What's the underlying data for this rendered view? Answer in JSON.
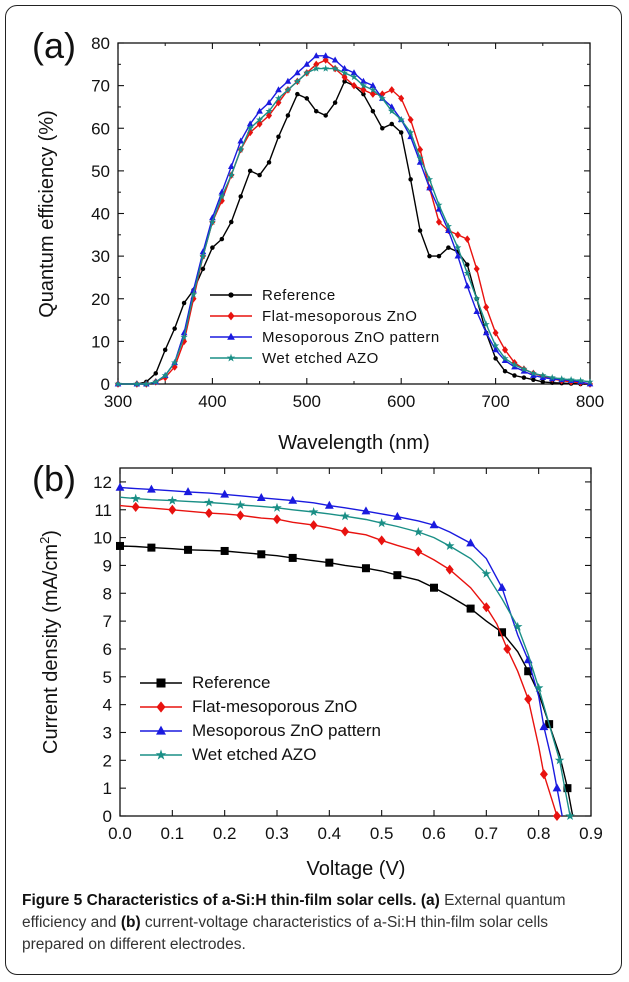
{
  "figure": {
    "caption_label": "Figure 5 Characteristics of a-Si:H thin-film solar cells.",
    "caption_a_marker": "(a)",
    "caption_text_1": " External quantum efficiency and ",
    "caption_b_marker": "(b)",
    "caption_text_2": " current-voltage characteristics of a-Si:H thin-film solar cells prepared on different electrodes."
  },
  "chart_data": [
    {
      "panel": "(a)",
      "type": "line",
      "xlabel": "Wavelength (nm)",
      "ylabel": "Quantum efficiency (%)",
      "xlim": [
        300,
        800
      ],
      "ylim": [
        0,
        80
      ],
      "xticks": [
        300,
        400,
        500,
        600,
        700,
        800
      ],
      "yticks": [
        0,
        10,
        20,
        30,
        40,
        50,
        60,
        70,
        80
      ],
      "legend_position": "bottom-center",
      "series": [
        {
          "name": "Reference",
          "color": "#000000",
          "marker": "circle",
          "x": [
            300,
            320,
            330,
            340,
            350,
            360,
            370,
            380,
            390,
            400,
            410,
            420,
            430,
            440,
            450,
            460,
            470,
            480,
            490,
            500,
            510,
            520,
            530,
            540,
            550,
            560,
            570,
            580,
            590,
            600,
            610,
            620,
            630,
            640,
            650,
            660,
            670,
            680,
            690,
            700,
            710,
            720,
            730,
            740,
            750,
            760,
            770,
            780,
            790,
            800
          ],
          "y": [
            0,
            0,
            0.5,
            2.5,
            8,
            13,
            19,
            22,
            27,
            32,
            34,
            38,
            44,
            50,
            49,
            52,
            58,
            63,
            68,
            67,
            64,
            63,
            66,
            71,
            70,
            68,
            64,
            60,
            61,
            59,
            48,
            36,
            30,
            30,
            32,
            31,
            28,
            20,
            12,
            6,
            3,
            2,
            1.5,
            1,
            0.5,
            0.3,
            0.2,
            0.1,
            0,
            0
          ]
        },
        {
          "name": "Flat-mesoporous ZnO",
          "color": "#e8120f",
          "marker": "diamond",
          "x": [
            300,
            320,
            330,
            340,
            350,
            360,
            370,
            380,
            390,
            400,
            410,
            420,
            430,
            440,
            450,
            460,
            470,
            480,
            490,
            500,
            510,
            520,
            530,
            540,
            550,
            560,
            570,
            580,
            590,
            600,
            610,
            620,
            630,
            640,
            650,
            660,
            670,
            680,
            690,
            700,
            710,
            720,
            730,
            740,
            750,
            760,
            770,
            780,
            790,
            800
          ],
          "y": [
            0,
            0,
            0,
            0.5,
            1.5,
            4,
            10,
            20,
            30,
            38,
            43,
            49,
            55,
            59,
            61,
            63,
            66,
            69,
            71,
            73,
            75,
            76,
            74,
            72,
            70,
            69,
            68,
            68,
            69,
            67,
            62,
            55,
            46,
            38,
            36,
            35,
            34,
            27,
            18,
            12,
            8,
            5,
            3.5,
            2.5,
            1.8,
            1.2,
            0.8,
            0.5,
            0.3,
            0
          ]
        },
        {
          "name": "Mesoporous ZnO pattern",
          "color": "#1a1adf",
          "marker": "triangle",
          "x": [
            300,
            320,
            330,
            340,
            350,
            360,
            370,
            380,
            390,
            400,
            410,
            420,
            430,
            440,
            450,
            460,
            470,
            480,
            490,
            500,
            510,
            520,
            530,
            540,
            550,
            560,
            570,
            580,
            590,
            600,
            610,
            620,
            630,
            640,
            650,
            660,
            670,
            680,
            690,
            700,
            710,
            720,
            730,
            740,
            750,
            760,
            770,
            780,
            790,
            800
          ],
          "y": [
            0,
            0,
            0,
            0.5,
            2,
            5,
            12,
            22,
            31,
            39,
            45,
            51,
            57,
            61,
            64,
            66,
            69,
            71,
            73,
            75,
            77,
            77,
            76,
            74,
            73,
            71,
            70,
            67,
            65,
            62,
            58,
            52,
            46,
            41,
            36,
            30,
            23,
            17,
            12,
            8,
            5.5,
            4,
            3,
            2,
            1.5,
            1.2,
            1,
            0.8,
            0.5,
            0
          ]
        },
        {
          "name": "Wet etched AZO",
          "color": "#1a8f86",
          "marker": "star",
          "x": [
            300,
            320,
            330,
            340,
            350,
            360,
            370,
            380,
            390,
            400,
            410,
            420,
            430,
            440,
            450,
            460,
            470,
            480,
            490,
            500,
            510,
            520,
            530,
            540,
            550,
            560,
            570,
            580,
            590,
            600,
            610,
            620,
            630,
            640,
            650,
            660,
            670,
            680,
            690,
            700,
            710,
            720,
            730,
            740,
            750,
            760,
            770,
            780,
            790,
            800
          ],
          "y": [
            0,
            0,
            0,
            0.5,
            2,
            5,
            11,
            21,
            30,
            38,
            44,
            49,
            55,
            60,
            62,
            64,
            67,
            69,
            71,
            73,
            74,
            74,
            74,
            73,
            72,
            70,
            69,
            67,
            64,
            62,
            59,
            53,
            48,
            42,
            37,
            32,
            26,
            20,
            14,
            9,
            6,
            4.5,
            3.5,
            2.5,
            2,
            1.5,
            1.2,
            1,
            0.8,
            0.5
          ]
        }
      ]
    },
    {
      "panel": "(b)",
      "type": "line",
      "xlabel": "Voltage (V)",
      "ylabel": "Current density (mA/cm²)",
      "ylabel_base": "Current density (mA/cm",
      "ylabel_sup": "2",
      "ylabel_close": ")",
      "xlim": [
        0.0,
        0.9
      ],
      "ylim": [
        0,
        12.5
      ],
      "xticks": [
        "0.0",
        "0.1",
        "0.2",
        "0.3",
        "0.4",
        "0.5",
        "0.6",
        "0.7",
        "0.8",
        "0.9"
      ],
      "yticks": [
        0,
        1,
        2,
        3,
        4,
        5,
        6,
        7,
        8,
        9,
        10,
        11,
        12
      ],
      "legend_position": "bottom-left",
      "series": [
        {
          "name": "Reference",
          "color": "#000000",
          "marker": "square",
          "x": [
            0.0,
            0.03,
            0.06,
            0.1,
            0.13,
            0.17,
            0.2,
            0.23,
            0.27,
            0.3,
            0.33,
            0.37,
            0.4,
            0.43,
            0.47,
            0.5,
            0.53,
            0.57,
            0.6,
            0.63,
            0.67,
            0.7,
            0.73,
            0.76,
            0.78,
            0.8,
            0.82,
            0.84,
            0.855,
            0.865
          ],
          "y": [
            9.7,
            9.68,
            9.64,
            9.6,
            9.56,
            9.54,
            9.52,
            9.47,
            9.4,
            9.35,
            9.27,
            9.17,
            9.1,
            9.0,
            8.9,
            8.8,
            8.65,
            8.47,
            8.2,
            7.9,
            7.45,
            7.0,
            6.6,
            5.9,
            5.2,
            4.4,
            3.3,
            2.2,
            1.0,
            0
          ]
        },
        {
          "name": "Flat-mesoporous ZnO",
          "color": "#e8120f",
          "marker": "diamond",
          "x": [
            0.0,
            0.03,
            0.06,
            0.1,
            0.13,
            0.17,
            0.2,
            0.23,
            0.27,
            0.3,
            0.33,
            0.37,
            0.4,
            0.43,
            0.47,
            0.5,
            0.53,
            0.57,
            0.6,
            0.63,
            0.67,
            0.7,
            0.72,
            0.74,
            0.76,
            0.78,
            0.8,
            0.81,
            0.825,
            0.835
          ],
          "y": [
            11.15,
            11.1,
            11.06,
            11.0,
            10.95,
            10.88,
            10.85,
            10.8,
            10.7,
            10.66,
            10.55,
            10.45,
            10.35,
            10.22,
            10.1,
            9.9,
            9.72,
            9.5,
            9.2,
            8.85,
            8.2,
            7.5,
            6.9,
            6.0,
            5.2,
            4.2,
            2.5,
            1.5,
            0.6,
            0
          ]
        },
        {
          "name": "Mesoporous ZnO pattern",
          "color": "#1a1adf",
          "marker": "triangle",
          "x": [
            0.0,
            0.03,
            0.06,
            0.1,
            0.13,
            0.17,
            0.2,
            0.23,
            0.27,
            0.3,
            0.33,
            0.37,
            0.4,
            0.43,
            0.47,
            0.5,
            0.53,
            0.57,
            0.6,
            0.63,
            0.67,
            0.7,
            0.73,
            0.76,
            0.78,
            0.8,
            0.81,
            0.825,
            0.835,
            0.845
          ],
          "y": [
            11.8,
            11.76,
            11.73,
            11.68,
            11.64,
            11.6,
            11.55,
            11.5,
            11.43,
            11.38,
            11.33,
            11.25,
            11.15,
            11.07,
            10.95,
            10.85,
            10.75,
            10.6,
            10.45,
            10.2,
            9.8,
            9.25,
            8.2,
            6.5,
            5.6,
            4.3,
            3.2,
            2.0,
            1.0,
            0
          ]
        },
        {
          "name": "Wet etched AZO",
          "color": "#1a8f86",
          "marker": "star",
          "x": [
            0.0,
            0.03,
            0.06,
            0.1,
            0.13,
            0.17,
            0.2,
            0.23,
            0.27,
            0.3,
            0.33,
            0.37,
            0.4,
            0.43,
            0.47,
            0.5,
            0.53,
            0.57,
            0.6,
            0.63,
            0.67,
            0.7,
            0.73,
            0.76,
            0.78,
            0.8,
            0.82,
            0.84,
            0.85,
            0.86
          ],
          "y": [
            11.45,
            11.4,
            11.36,
            11.33,
            11.3,
            11.26,
            11.22,
            11.17,
            11.12,
            11.07,
            11.0,
            10.92,
            10.85,
            10.77,
            10.65,
            10.52,
            10.4,
            10.2,
            10.0,
            9.7,
            9.25,
            8.7,
            7.8,
            6.8,
            5.8,
            4.6,
            3.3,
            2.0,
            1.0,
            0
          ]
        }
      ]
    }
  ]
}
